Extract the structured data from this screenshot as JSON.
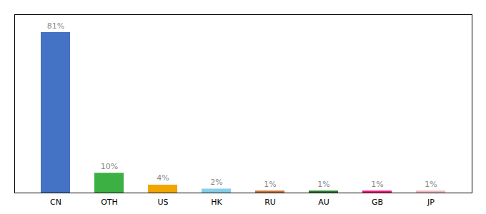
{
  "chart_data": {
    "type": "bar",
    "categories": [
      "CN",
      "OTH",
      "US",
      "HK",
      "RU",
      "AU",
      "GB",
      "JP"
    ],
    "values": [
      81,
      10,
      4,
      2,
      1,
      1,
      1,
      1
    ],
    "value_labels": [
      "81%",
      "10%",
      "4%",
      "2%",
      "1%",
      "1%",
      "1%",
      "1%"
    ],
    "colors": [
      "#4472c4",
      "#3cb043",
      "#f0a500",
      "#87ceeb",
      "#c87137",
      "#2a7a2a",
      "#e81b7a",
      "#f4b8c0"
    ],
    "ylim": [
      0,
      90
    ],
    "yticks": [],
    "tick_labels": "x",
    "data_labels": true,
    "grid": false
  }
}
